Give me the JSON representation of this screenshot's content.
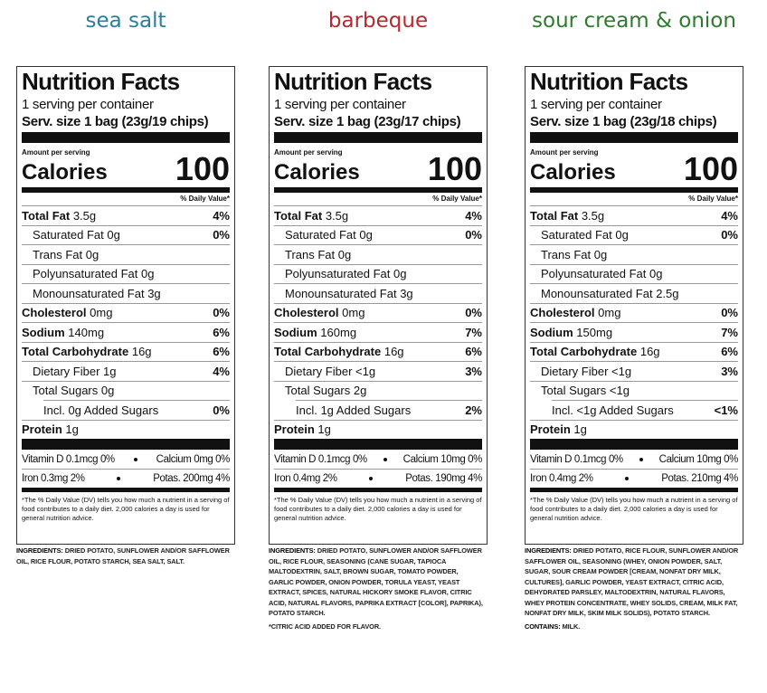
{
  "panels": [
    {
      "flavor": "sea salt",
      "color": "#2b7d9c",
      "title": "Nutrition Facts",
      "servings": "1 serving per container",
      "serving_size_label": "Serv. size",
      "serving_size": "1 bag (23g/19 chips)",
      "amount_per_serving": "Amount per serving",
      "calories_label": "Calories",
      "calories": "100",
      "dv_header": "% Daily Value*",
      "nutrients": [
        {
          "name": "Total Fat",
          "amount": "3.5g",
          "dv": "4%",
          "sub": [
            {
              "name": "Saturated Fat",
              "amount": "0g",
              "dv": "0%"
            },
            {
              "name": "Trans Fat",
              "amount": "0g"
            },
            {
              "name": "Polyunsaturated Fat",
              "amount": "0g"
            },
            {
              "name": "Monounsaturated Fat",
              "amount": "3g"
            }
          ]
        },
        {
          "name": "Cholesterol",
          "amount": "0mg",
          "dv": "0%"
        },
        {
          "name": "Sodium",
          "amount": "140mg",
          "dv": "6%"
        },
        {
          "name": "Total Carbohydrate",
          "amount": "16g",
          "dv": "6%",
          "sub": [
            {
              "name": "Dietary Fiber",
              "amount": "1g",
              "dv": "4%"
            },
            {
              "name": "Total Sugars",
              "amount": "0g",
              "sub": [
                {
                  "name": "Incl. 0g Added Sugars",
                  "dv": "0%"
                }
              ]
            }
          ]
        },
        {
          "name": "Protein",
          "amount": "1g"
        }
      ],
      "vitamins": [
        [
          "Vitamin D 0.1mcg 0%",
          "Calcium 0mg 0%"
        ],
        [
          "Iron 0.3mg 2%",
          "Potas. 200mg 4%"
        ]
      ],
      "footnote": "*The % Daily Value (DV) tells you how much a nutrient in a serving of food contributes to a daily diet. 2,000 calories a day is used for general nutrition advice.",
      "ingredients": {
        "label": "INGREDIENTS:",
        "text": "DRIED POTATO, SUNFLOWER AND/OR SAFFLOWER OIL, RICE FLOUR, POTATO STARCH, SEA SALT, SALT."
      },
      "notes": []
    },
    {
      "flavor": "barbeque",
      "color": "#b8282f",
      "title": "Nutrition Facts",
      "servings": "1 serving per container",
      "serving_size_label": "Serv. size",
      "serving_size": "1 bag (23g/17 chips)",
      "amount_per_serving": "Amount per serving",
      "calories_label": "Calories",
      "calories": "100",
      "dv_header": "% Daily Value*",
      "nutrients": [
        {
          "name": "Total Fat",
          "amount": "3.5g",
          "dv": "4%",
          "sub": [
            {
              "name": "Saturated Fat",
              "amount": "0g",
              "dv": "0%"
            },
            {
              "name": "Trans Fat",
              "amount": "0g"
            },
            {
              "name": "Polyunsaturated Fat",
              "amount": "0g"
            },
            {
              "name": "Monounsaturated Fat",
              "amount": "3g"
            }
          ]
        },
        {
          "name": "Cholesterol",
          "amount": "0mg",
          "dv": "0%"
        },
        {
          "name": "Sodium",
          "amount": "160mg",
          "dv": "7%"
        },
        {
          "name": "Total Carbohydrate",
          "amount": "16g",
          "dv": "6%",
          "sub": [
            {
              "name": "Dietary Fiber",
              "amount": "<1g",
              "dv": "3%"
            },
            {
              "name": "Total Sugars",
              "amount": "2g",
              "sub": [
                {
                  "name": "Incl. 1g Added Sugars",
                  "dv": "2%"
                }
              ]
            }
          ]
        },
        {
          "name": "Protein",
          "amount": "1g"
        }
      ],
      "vitamins": [
        [
          "Vitamin D 0.1mcg 0%",
          "Calcium 10mg 0%"
        ],
        [
          "Iron 0.4mg 2%",
          "Potas. 190mg 4%"
        ]
      ],
      "footnote": "*The % Daily Value (DV) tells you how much a nutrient in a serving of food contributes to a daily diet. 2,000 calories a day is used for general nutrition advice.",
      "ingredients": {
        "label": "INGREDIENTS:",
        "text": "DRIED POTATO, SUNFLOWER AND/OR SAFFLOWER OIL, RICE FLOUR, SEASONING (CANE SUGAR, TAPIOCA MALTODEXTRIN, SALT, BROWN SUGAR, TOMATO POWDER, GARLIC POWDER, ONION POWDER, TORULA YEAST, YEAST EXTRACT, SPICES, NATURAL HICKORY SMOKE FLAVOR, CITRIC ACID, NATURAL FLAVORS, PAPRIKA EXTRACT [COLOR], PAPRIKA), POTATO STARCH."
      },
      "notes": [
        {
          "text": "*CITRIC ACID ADDED FOR FLAVOR."
        }
      ]
    },
    {
      "flavor": "sour cream & onion",
      "color": "#2e7b2e",
      "title": "Nutrition Facts",
      "servings": "1 serving per container",
      "serving_size_label": "Serv. size",
      "serving_size": "1 bag (23g/18 chips)",
      "amount_per_serving": "Amount per serving",
      "calories_label": "Calories",
      "calories": "100",
      "dv_header": "% Daily Value*",
      "nutrients": [
        {
          "name": "Total Fat",
          "amount": "3.5g",
          "dv": "4%",
          "sub": [
            {
              "name": "Saturated Fat",
              "amount": "0g",
              "dv": "0%"
            },
            {
              "name": "Trans Fat",
              "amount": "0g"
            },
            {
              "name": "Polyunsaturated Fat",
              "amount": "0g"
            },
            {
              "name": "Monounsaturated Fat",
              "amount": "2.5g"
            }
          ]
        },
        {
          "name": "Cholesterol",
          "amount": "0mg",
          "dv": "0%"
        },
        {
          "name": "Sodium",
          "amount": "150mg",
          "dv": "7%"
        },
        {
          "name": "Total Carbohydrate",
          "amount": "16g",
          "dv": "6%",
          "sub": [
            {
              "name": "Dietary Fiber",
              "amount": "<1g",
              "dv": "3%"
            },
            {
              "name": "Total Sugars",
              "amount": "<1g",
              "sub": [
                {
                  "name": "Incl. <1g Added Sugars",
                  "dv": "<1%"
                }
              ]
            }
          ]
        },
        {
          "name": "Protein",
          "amount": "1g"
        }
      ],
      "vitamins": [
        [
          "Vitamin D 0.1mcg 0%",
          "Calcium 10mg 0%"
        ],
        [
          "Iron 0.4mg 2%",
          "Potas. 210mg 4%"
        ]
      ],
      "footnote": "*The % Daily Value (DV) tells you how much a nutrient in a serving of food contributes to a daily diet. 2,000 calories a day is used for general nutrition advice.",
      "ingredients": {
        "label": "INGREDIENTS:",
        "text": "DRIED POTATO, RICE FLOUR, SUNFLOWER AND/OR SAFFLOWER OIL, SEASONING (WHEY, ONION POWDER, SALT, SUGAR, SOUR CREAM POWDER [CREAM, NONFAT DRY MILK, CULTURES], GARLIC POWDER, YEAST EXTRACT, CITRIC ACID, DEHYDRATED PARSLEY, MALTODEXTRIN, NATURAL FLAVORS, WHEY PROTEIN CONCENTRATE, WHEY SOLIDS, CREAM, MILK FAT, NONFAT DRY MILK, SKIM MILK SOLIDS), POTATO STARCH."
      },
      "notes": [
        {
          "label": "CONTAINS:",
          "text": "MILK."
        }
      ]
    }
  ]
}
